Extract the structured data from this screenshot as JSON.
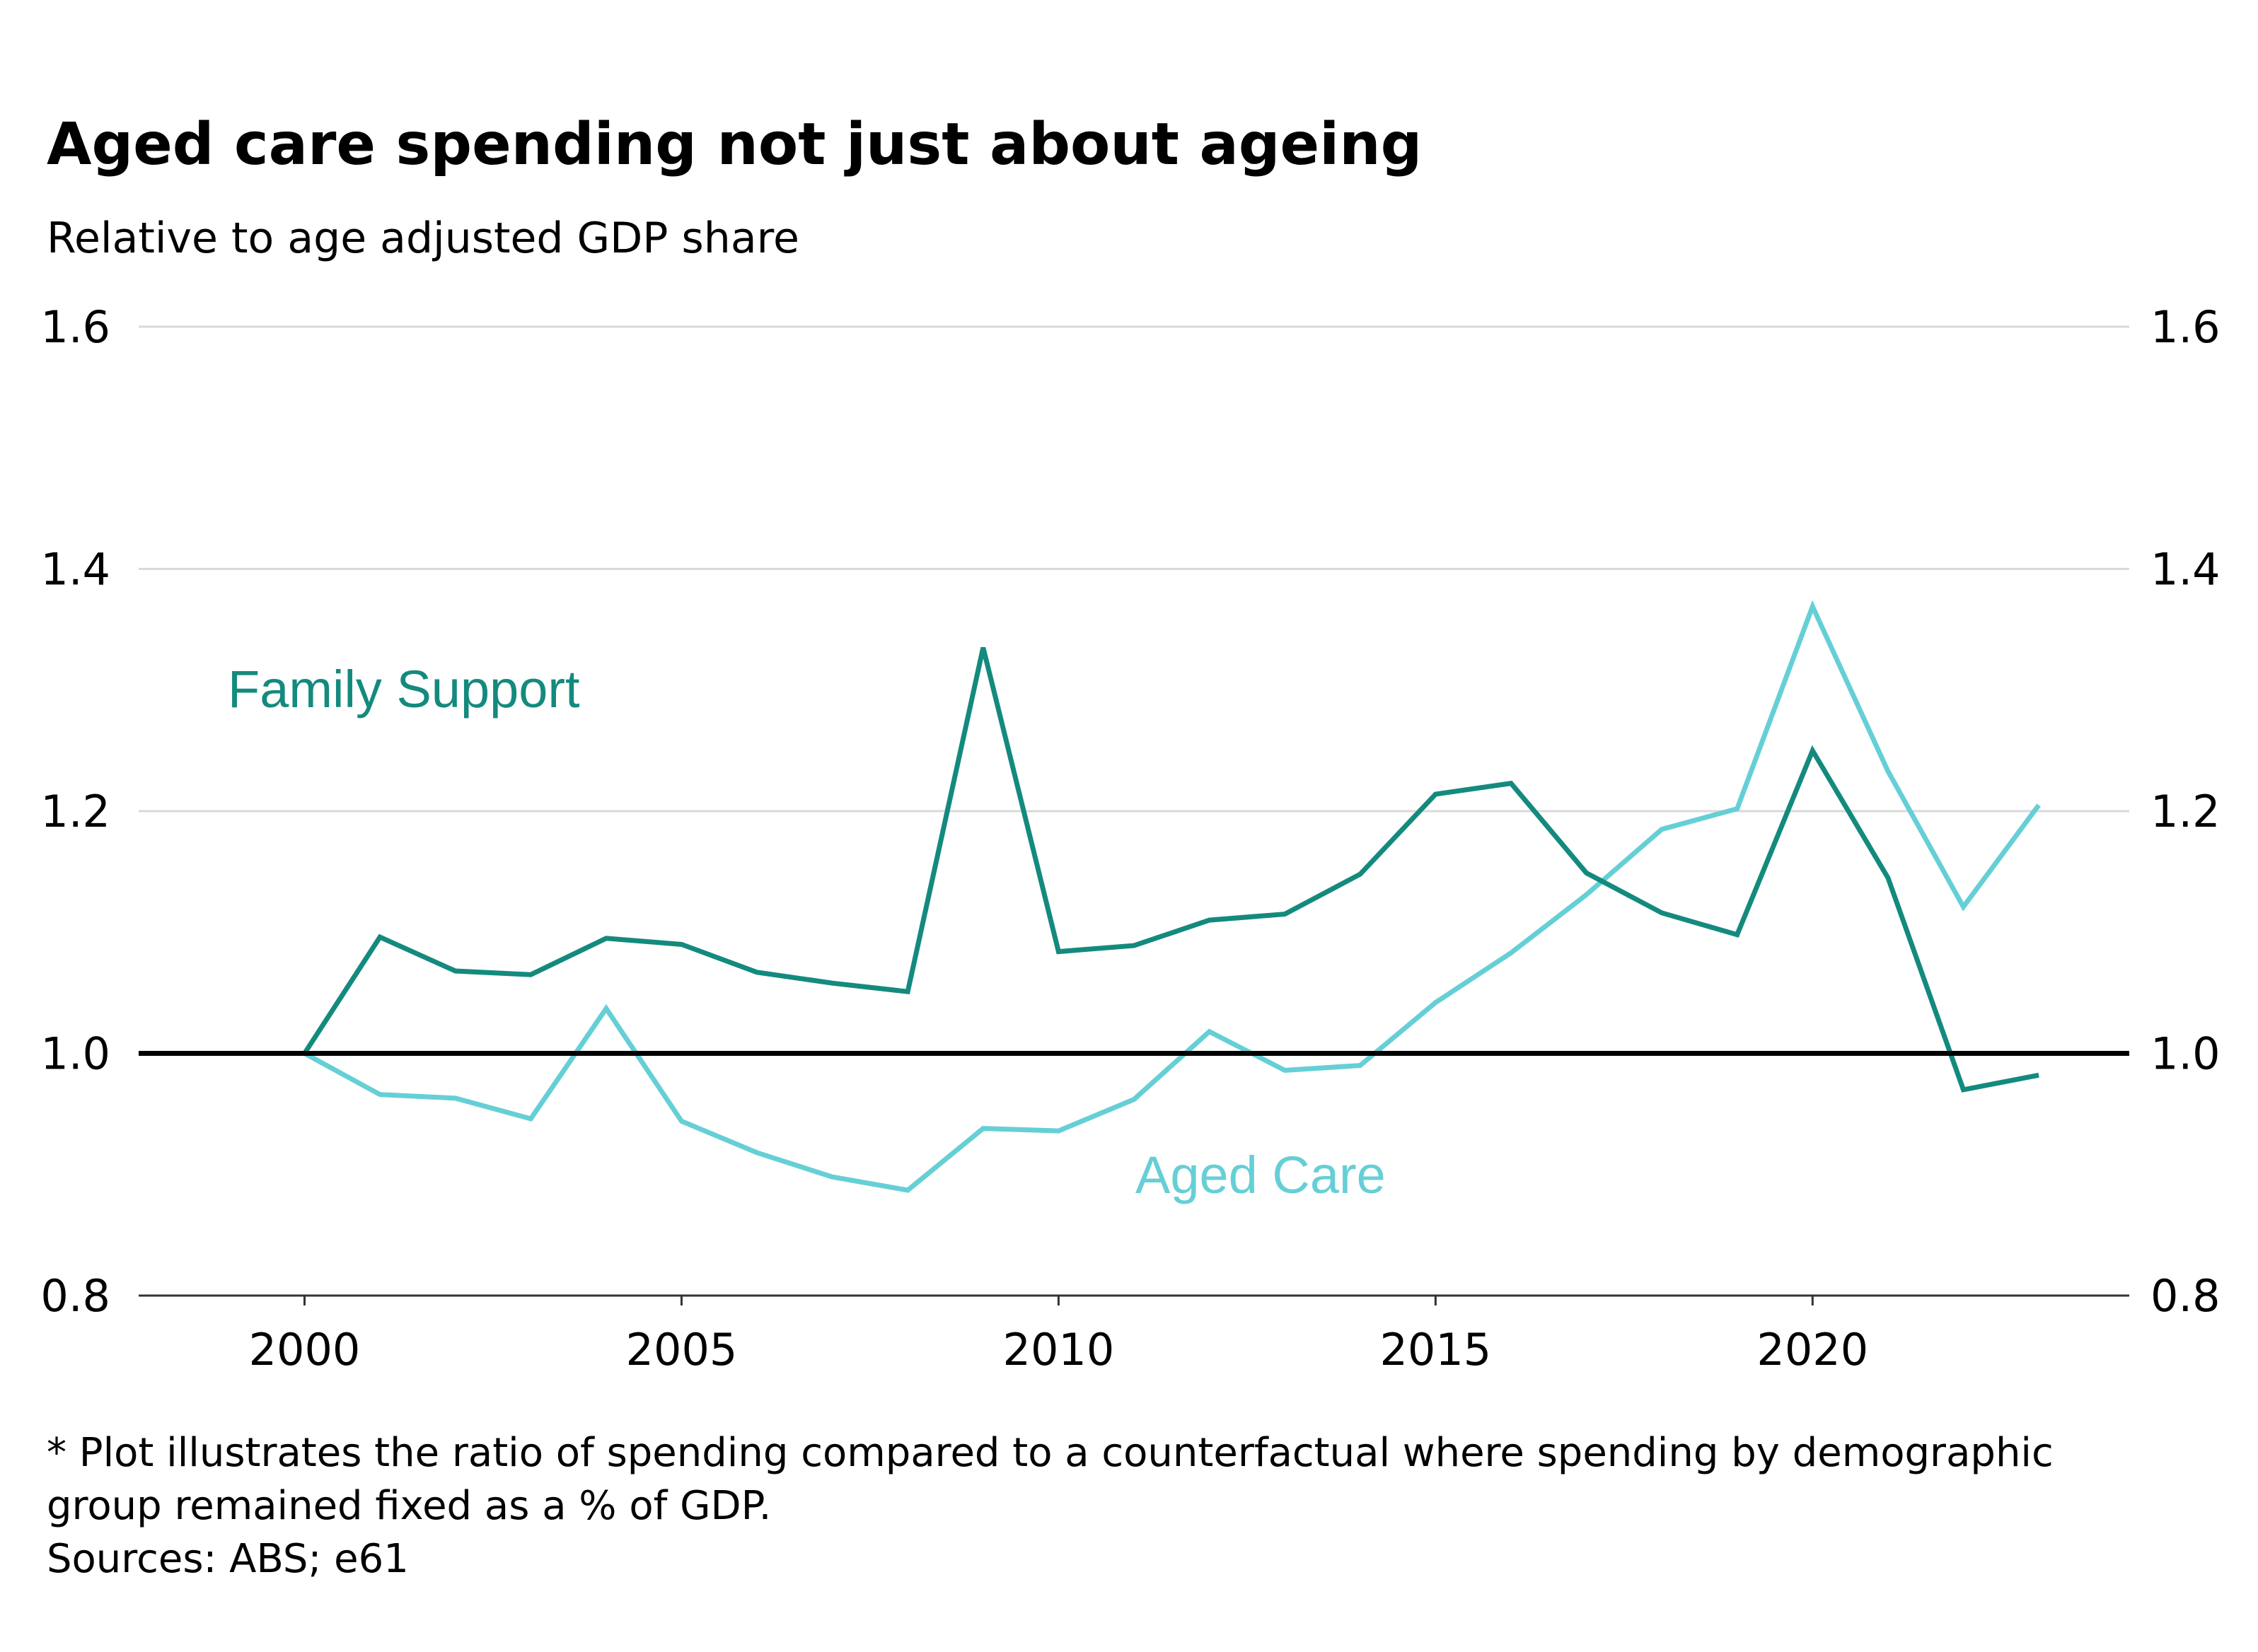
{
  "colors": {
    "family_support": "#148a7e",
    "aged_care": "#66cfd6",
    "baseline": "#000000",
    "grid": "#d9d9d9"
  },
  "chart_data": {
    "type": "line",
    "title": "Aged care spending not just about ageing",
    "subtitle": "Relative to age adjusted GDP share",
    "xlim": [
      1997.8,
      2024.2
    ],
    "ylim": [
      0.8,
      1.6
    ],
    "y_ticks": [
      0.8,
      1.0,
      1.2,
      1.4,
      1.6
    ],
    "y_tick_labels": [
      "0.8",
      "1.0",
      "1.2",
      "1.4",
      "1.6"
    ],
    "x_ticks": [
      2000,
      2005,
      2010,
      2015,
      2020
    ],
    "x_tick_labels": [
      "2000",
      "2005",
      "2010",
      "2015",
      "2020"
    ],
    "grid": true,
    "baseline": 1.0,
    "x": [
      2000,
      2001,
      2002,
      2003,
      2004,
      2005,
      2006,
      2007,
      2008,
      2009,
      2010,
      2011,
      2012,
      2013,
      2014,
      2015,
      2016,
      2017,
      2018,
      2019,
      2020,
      2021,
      2022,
      2023
    ],
    "series": [
      {
        "name": "Family Support",
        "values": [
          1.0,
          1.096,
          1.068,
          1.065,
          1.095,
          1.09,
          1.067,
          1.058,
          1.051,
          1.335,
          1.084,
          1.089,
          1.11,
          1.115,
          1.148,
          1.214,
          1.223,
          1.149,
          1.116,
          1.098,
          1.25,
          1.145,
          0.97,
          0.982
        ]
      },
      {
        "name": "Aged Care",
        "values": [
          1.0,
          0.966,
          0.963,
          0.946,
          1.037,
          0.944,
          0.918,
          0.898,
          0.887,
          0.938,
          0.936,
          0.962,
          1.018,
          0.986,
          0.99,
          1.042,
          1.083,
          1.131,
          1.185,
          1.202,
          1.369,
          1.233,
          1.121,
          1.205
        ]
      }
    ],
    "footnote": [
      "* Plot illustrates the ratio of spending compared to a counterfactual where spending by demographic",
      "group remained fixed as a % of GDP.",
      "Sources: ABS; e61"
    ]
  }
}
